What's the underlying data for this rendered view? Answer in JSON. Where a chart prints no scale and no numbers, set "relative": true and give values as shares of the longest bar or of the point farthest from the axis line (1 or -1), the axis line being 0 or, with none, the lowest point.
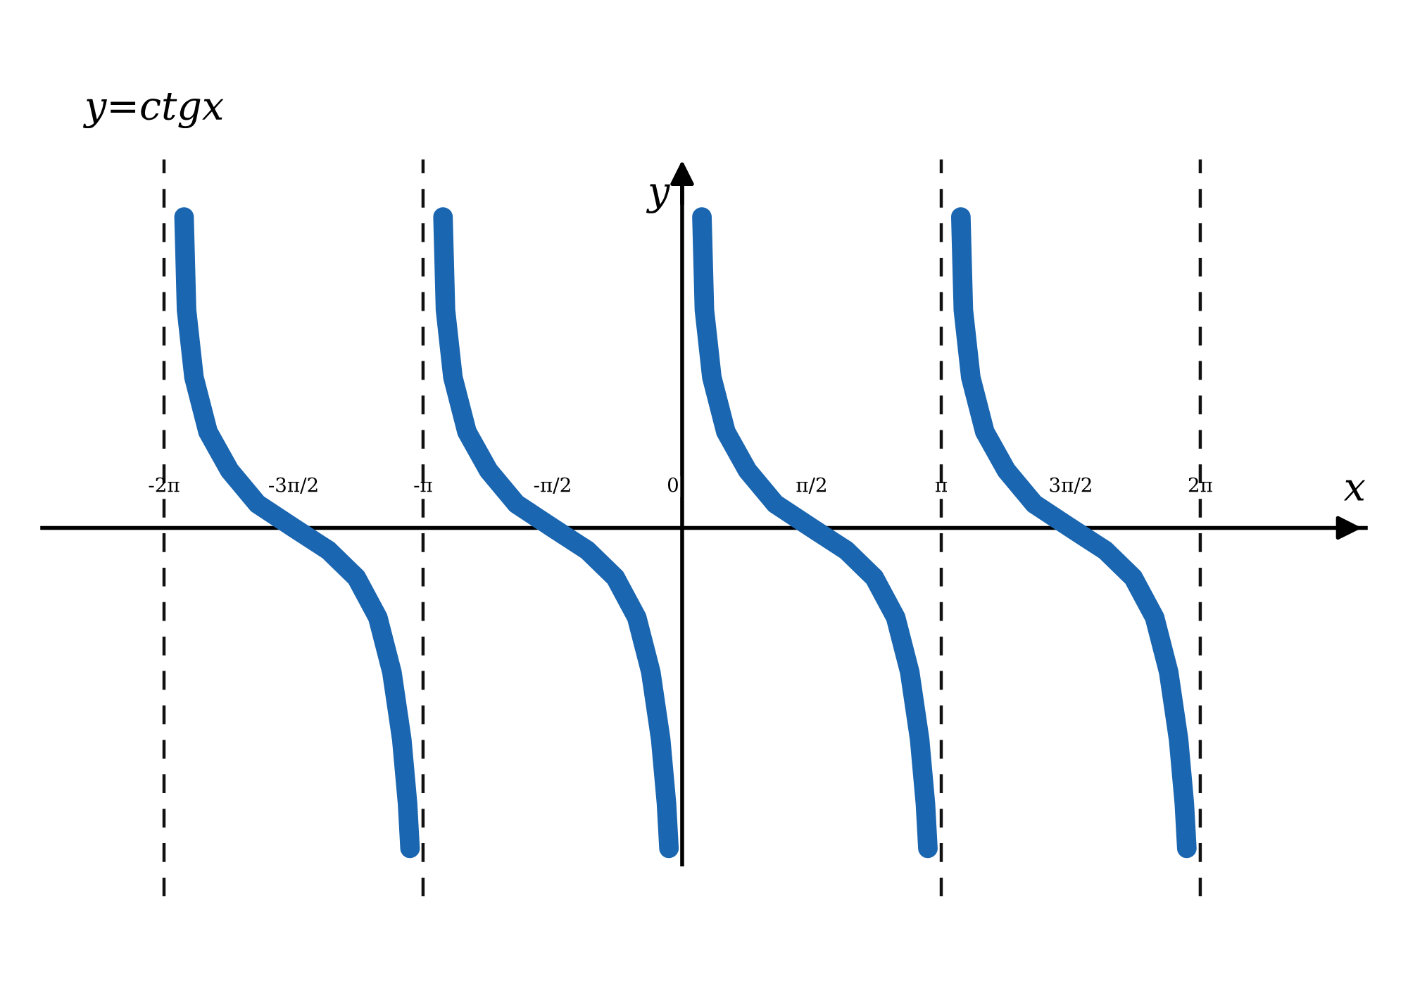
{
  "chart_data": {
    "type": "line",
    "title": "y=ctgx",
    "xlabel": "x",
    "ylabel": "y",
    "relative": true,
    "xlim": [
      -7.76,
      8.29
    ],
    "xticks": [
      {
        "value": -6.283,
        "label": "-2π"
      },
      {
        "value": -4.712,
        "label": "-3π/2"
      },
      {
        "value": -3.142,
        "label": "-π"
      },
      {
        "value": -1.571,
        "label": "-π/2"
      },
      {
        "value": 0,
        "label": "0"
      },
      {
        "value": 1.571,
        "label": "π/2"
      },
      {
        "value": 3.142,
        "label": "π"
      },
      {
        "value": 4.712,
        "label": "3π/2"
      },
      {
        "value": 6.283,
        "label": "2π"
      }
    ],
    "ref_lines": [
      {
        "axis": "x",
        "value": -6.283,
        "line_style": "dashed",
        "color": "#111111"
      },
      {
        "axis": "x",
        "value": -3.142,
        "line_style": "dashed",
        "color": "#111111"
      },
      {
        "axis": "x",
        "value": 3.142,
        "line_style": "dashed",
        "color": "#111111"
      },
      {
        "axis": "x",
        "value": 6.283,
        "line_style": "dashed",
        "color": "#111111"
      }
    ],
    "line_style": "solid",
    "series": [
      {
        "color": "#1a66b0",
        "x": [
          -6.04,
          -6.01,
          -5.92,
          -5.75,
          -5.49,
          -5.15,
          -4.71,
          -4.29,
          -3.95,
          -3.69,
          -3.52,
          -3.4,
          -3.33,
          -3.3
        ],
        "values": [
          0.97,
          0.68,
          0.47,
          0.3,
          0.18,
          0.075,
          0,
          -0.07,
          -0.155,
          -0.28,
          -0.45,
          -0.66,
          -0.86,
          -1.0
        ]
      },
      {
        "color": "#1a66b0",
        "x": [
          -2.9,
          -2.87,
          -2.78,
          -2.61,
          -2.35,
          -2.01,
          -1.57,
          -1.15,
          -0.81,
          -0.55,
          -0.38,
          -0.26,
          -0.19,
          -0.16
        ],
        "values": [
          0.97,
          0.68,
          0.47,
          0.3,
          0.18,
          0.075,
          0,
          -0.07,
          -0.155,
          -0.28,
          -0.45,
          -0.66,
          -0.86,
          -1.0
        ]
      },
      {
        "color": "#1a66b0",
        "x": [
          0.24,
          0.27,
          0.36,
          0.53,
          0.79,
          1.13,
          1.57,
          1.99,
          2.33,
          2.59,
          2.76,
          2.88,
          2.95,
          2.98
        ],
        "values": [
          0.97,
          0.68,
          0.47,
          0.3,
          0.18,
          0.075,
          0,
          -0.07,
          -0.155,
          -0.28,
          -0.45,
          -0.66,
          -0.86,
          -1.0
        ]
      },
      {
        "color": "#1a66b0",
        "x": [
          3.38,
          3.41,
          3.5,
          3.67,
          3.93,
          4.27,
          4.71,
          5.13,
          5.47,
          5.73,
          5.9,
          6.02,
          6.09,
          6.12
        ],
        "values": [
          0.97,
          0.68,
          0.47,
          0.3,
          0.18,
          0.075,
          0,
          -0.07,
          -0.155,
          -0.28,
          -0.45,
          -0.66,
          -0.86,
          -1.0
        ]
      }
    ]
  }
}
